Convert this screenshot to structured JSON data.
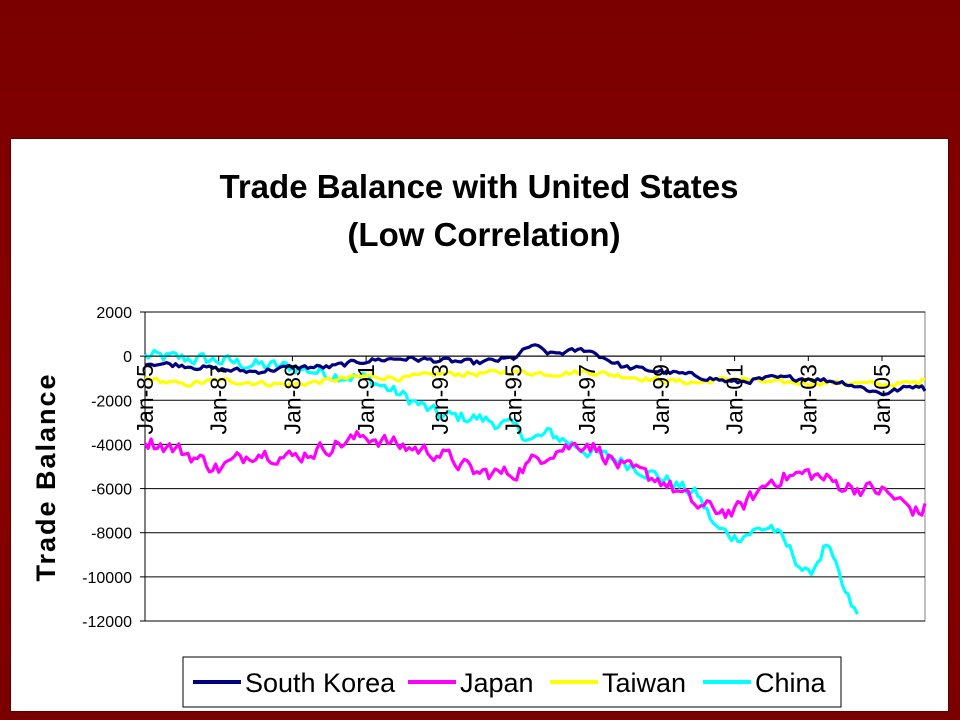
{
  "chart_data": {
    "type": "line",
    "title": "Trade Balance with United States",
    "subtitle": "(Low Correlation)",
    "xlabel": "",
    "ylabel": "Trade Balance",
    "ylim": [
      -12000,
      2000
    ],
    "yticks": [
      "2000",
      "0",
      "-2000",
      "-4000",
      "-6000",
      "-8000",
      "-10000",
      "-12000"
    ],
    "xticks": [
      "Jan-85",
      "Jan-87",
      "Jan-89",
      "Jan-91",
      "Jan-93",
      "Jan-95",
      "Jan-97",
      "Jan-99",
      "Jan-01",
      "Jan-03",
      "Jan-05"
    ],
    "xrange": [
      "1985-01",
      "2006-03"
    ],
    "grid": "horizontal",
    "legend_position": "bottom",
    "series": [
      {
        "name": "South Korea",
        "color": "#000080",
        "x": [
          "1985-01",
          "1986-01",
          "1987-01",
          "1988-01",
          "1989-01",
          "1990-01",
          "1991-01",
          "1992-01",
          "1993-01",
          "1994-01",
          "1995-01",
          "1995-07",
          "1996-01",
          "1997-01",
          "1998-01",
          "1999-01",
          "2000-01",
          "2001-01",
          "2002-01",
          "2003-01",
          "2004-01",
          "2005-01",
          "2006-01",
          "2006-03"
        ],
        "values": [
          -300,
          -400,
          -600,
          -700,
          -500,
          -500,
          -200,
          -100,
          -200,
          -300,
          -100,
          500,
          100,
          300,
          -500,
          -700,
          -900,
          -1200,
          -1000,
          -1000,
          -1200,
          -1700,
          -1300,
          -1500
        ]
      },
      {
        "name": "Japan",
        "color": "#ff00ff",
        "x": [
          "1985-01",
          "1986-01",
          "1987-01",
          "1988-01",
          "1989-01",
          "1990-01",
          "1991-01",
          "1992-01",
          "1993-01",
          "1994-01",
          "1995-01",
          "1996-01",
          "1997-01",
          "1998-01",
          "1999-01",
          "2000-01",
          "2001-01",
          "2002-01",
          "2003-01",
          "2004-01",
          "2005-01",
          "2006-01",
          "2006-03"
        ],
        "values": [
          -3800,
          -4300,
          -5100,
          -4300,
          -4600,
          -4100,
          -3600,
          -4100,
          -4400,
          -5300,
          -5300,
          -4300,
          -3900,
          -5100,
          -5600,
          -6800,
          -7100,
          -5600,
          -5300,
          -5900,
          -6100,
          -7100,
          -6900
        ]
      },
      {
        "name": "Taiwan",
        "color": "#ffff00",
        "x": [
          "1985-01",
          "1986-01",
          "1987-01",
          "1988-01",
          "1989-01",
          "1990-01",
          "1991-01",
          "1992-01",
          "1993-01",
          "1994-01",
          "1995-01",
          "1996-01",
          "1997-01",
          "1998-01",
          "1999-01",
          "2000-01",
          "2001-01",
          "2002-01",
          "2003-01",
          "2004-01",
          "2005-01",
          "2006-01",
          "2006-03"
        ],
        "values": [
          -1000,
          -1300,
          -1100,
          -1200,
          -1300,
          -1100,
          -900,
          -1000,
          -800,
          -800,
          -700,
          -800,
          -700,
          -900,
          -1100,
          -1200,
          -1000,
          -1200,
          -1200,
          -1200,
          -1300,
          -1200,
          -1000
        ]
      },
      {
        "name": "China",
        "color": "#00ffff",
        "x": [
          "1985-01",
          "1986-01",
          "1987-01",
          "1988-01",
          "1989-01",
          "1990-01",
          "1991-01",
          "1992-01",
          "1993-01",
          "1994-01",
          "1995-01",
          "1995-07",
          "1996-01",
          "1997-01",
          "1998-01",
          "1999-01",
          "2000-01",
          "2000-07",
          "2001-01",
          "2002-01",
          "2002-07",
          "2003-01",
          "2003-07",
          "2004-01",
          "2004-05"
        ],
        "values": [
          0,
          -100,
          -200,
          -400,
          -500,
          -800,
          -1000,
          -1800,
          -2700,
          -2800,
          -3200,
          -3800,
          -3500,
          -4300,
          -4800,
          -5500,
          -6300,
          -7800,
          -8200,
          -7700,
          -8800,
          -10000,
          -8500,
          -10800,
          -11800
        ]
      }
    ]
  }
}
